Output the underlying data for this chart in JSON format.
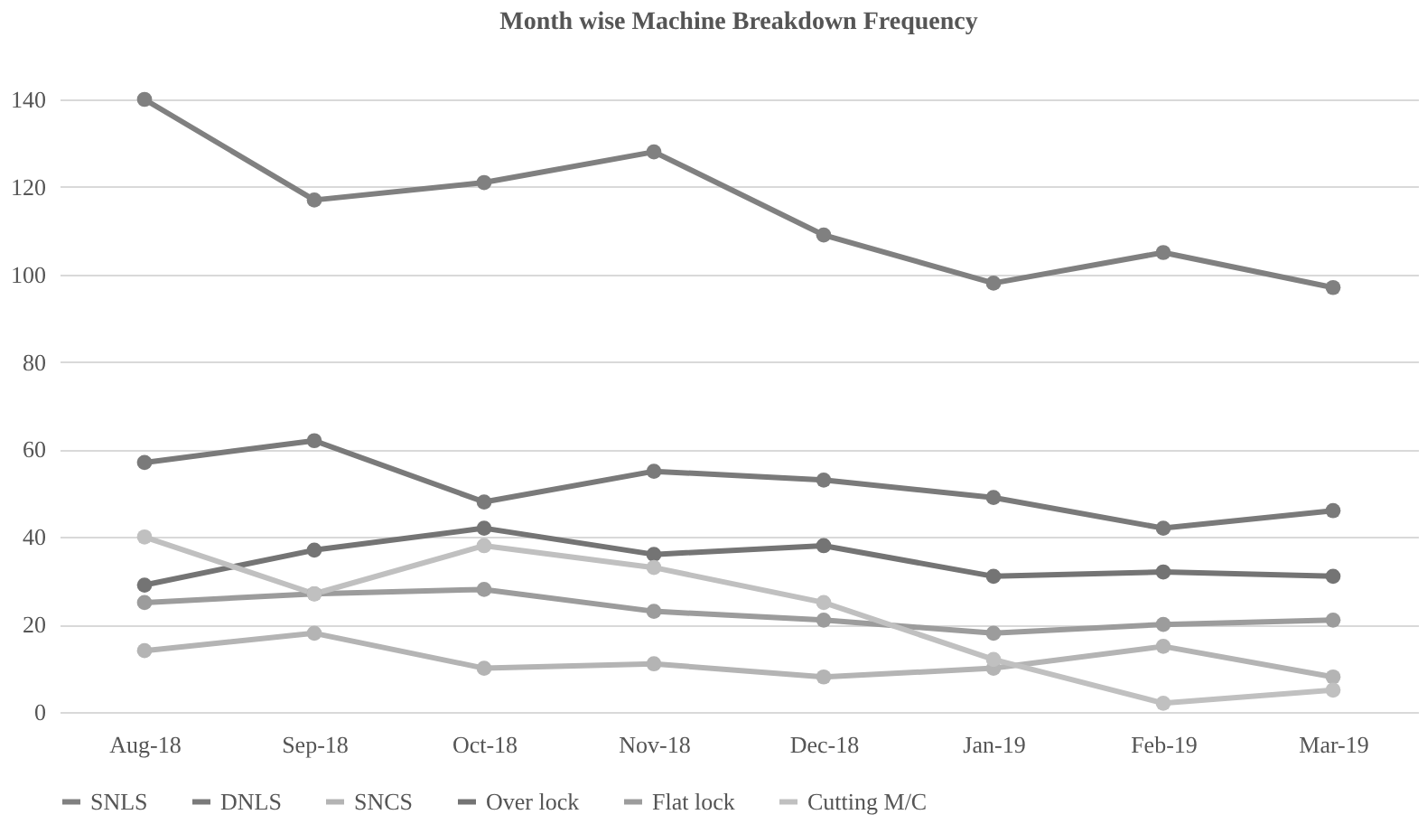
{
  "chart_data": {
    "type": "line",
    "title": "Month  wise Machine Breakdown  Frequency",
    "categories": [
      "Aug-18",
      "Sep-18",
      "Oct-18",
      "Nov-18",
      "Dec-18",
      "Jan-19",
      "Feb-19",
      "Mar-19"
    ],
    "series": [
      {
        "name": "SNLS",
        "color": "#808080",
        "values": [
          140,
          117,
          121,
          128,
          109,
          98,
          105,
          97
        ]
      },
      {
        "name": "DNLS",
        "color": "#7a7a7a",
        "values": [
          57,
          62,
          48,
          55,
          53,
          49,
          42,
          46
        ]
      },
      {
        "name": "SNCS",
        "color": "#b4b4b4",
        "values": [
          14,
          18,
          10,
          11,
          8,
          10,
          15,
          8
        ]
      },
      {
        "name": "Over lock",
        "color": "#747474",
        "values": [
          29,
          37,
          42,
          36,
          38,
          31,
          32,
          31
        ]
      },
      {
        "name": "Flat lock",
        "color": "#9c9c9c",
        "values": [
          25,
          27,
          28,
          23,
          21,
          18,
          20,
          21
        ]
      },
      {
        "name": "Cutting M/C",
        "color": "#c0c0c0",
        "values": [
          40,
          27,
          38,
          33,
          25,
          12,
          2,
          5
        ]
      }
    ],
    "ylim": [
      0,
      140
    ],
    "yticks": [
      0,
      20,
      40,
      60,
      80,
      100,
      120,
      140
    ],
    "grid": "y",
    "legend": "bottom",
    "marker": "circle",
    "line_style": "solid"
  }
}
